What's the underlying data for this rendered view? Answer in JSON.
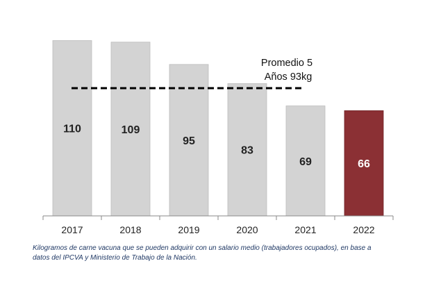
{
  "chart_data": {
    "type": "bar",
    "categories": [
      "2017",
      "2018",
      "2019",
      "2020",
      "2021",
      "2022"
    ],
    "values": [
      110,
      109,
      95,
      83,
      69,
      66
    ],
    "ylim": [
      0,
      118
    ],
    "grid": false,
    "legend": "none",
    "bar_color": "#d3d3d3",
    "highlight_color": "#8b3034",
    "highlight_index": 5,
    "value_label_color": "#222222",
    "highlight_label_color": "#ffffff",
    "reference_line": {
      "value": 93,
      "style": "dashed",
      "color": "#000000",
      "label_lines": [
        "Promedio 5",
        "Años 93kg"
      ]
    }
  },
  "caption": {
    "line1": "Kilogramos de carne vacuna que se pueden adquirir con un salario medio (trabajadores ocupados), en base a",
    "line2": "datos del IPCVA y Ministerio de Trabajo de la Nación."
  }
}
